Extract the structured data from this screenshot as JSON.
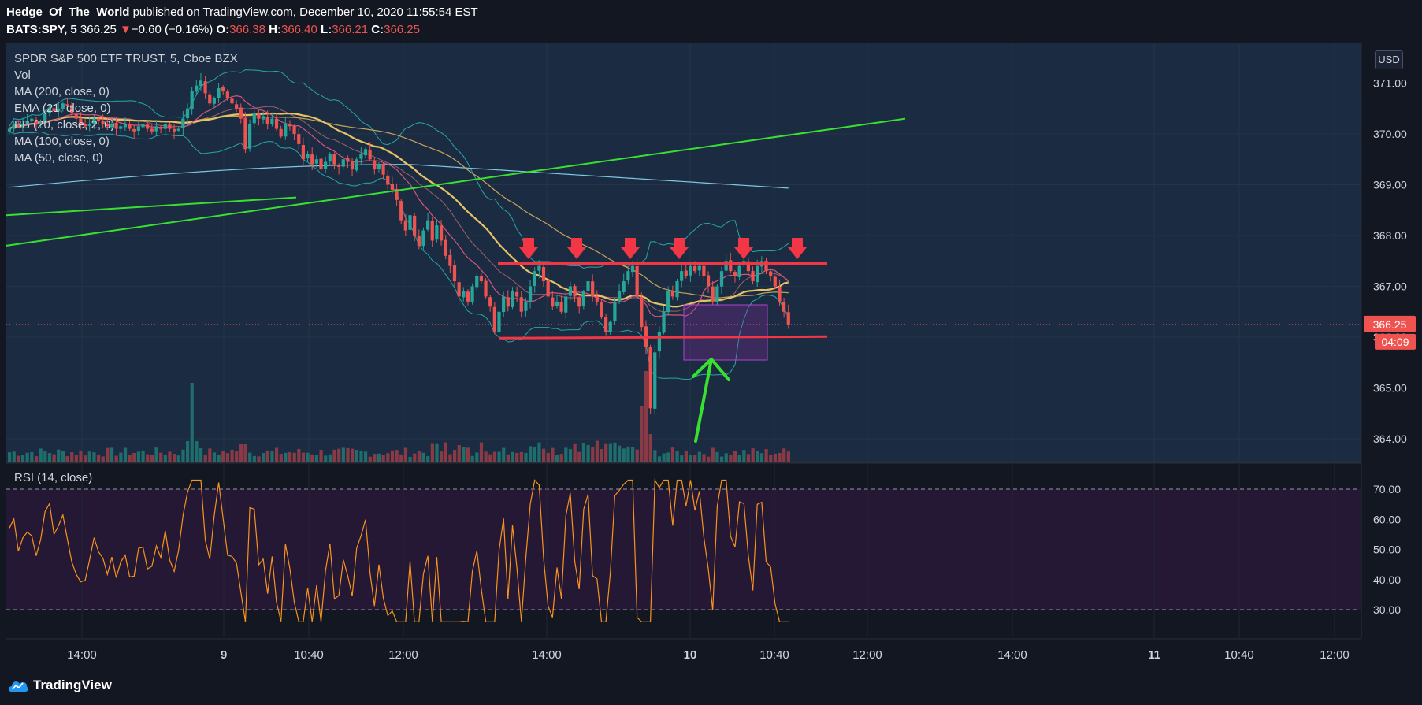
{
  "header": {
    "author": "Hedge_Of_The_World",
    "published": "published on TradingView.com, December 10, 2020 11:55:54 EST",
    "symbol": "BATS:SPY, 5",
    "last": "366.25",
    "arrow": "▼",
    "change": "−0.60 (−0.16%)",
    "o_label": "O:",
    "o_value": "366.38",
    "h_label": "H:",
    "h_value": "366.40",
    "l_label": "L:",
    "l_value": "366.21",
    "c_label": "C:",
    "c_value": "366.25"
  },
  "legend": {
    "title": "SPDR S&P 500 ETF TRUST, 5, Cboe BZX",
    "items": [
      "Vol",
      "MA (200, close, 0)",
      "EMA (21, close, 0)",
      "BB (20, close, 2, 0)",
      "MA (100, close, 0)",
      "MA (50, close, 0)"
    ]
  },
  "currency": "USD",
  "price_badge": "366.25",
  "time_badge": "04:09",
  "rsi_label": "RSI (14, close)",
  "footer": {
    "brand": "TradingView"
  },
  "colors": {
    "background": "#131722",
    "price_pane": "#1b2c42",
    "rsi_band": "#251834",
    "up": "#26a69a",
    "down": "#ef5350",
    "trendline": "#39e02f",
    "resistance": "#f23645",
    "ma50": "#e8c365",
    "ma200": "#7ec8e3",
    "ma100": "#c8a45a",
    "ema21": "#d5547c",
    "bb": "#26a6a6",
    "rsi": "#f7931e",
    "box": "#9c27b0"
  },
  "chart_data": [
    {
      "type": "candlestick",
      "title": "SPDR S&P 500 ETF TRUST, 5, Cboe BZX",
      "y_ticks": [
        "371.00",
        "370.00",
        "369.00",
        "368.00",
        "367.00",
        "366.00",
        "365.00",
        "364.00"
      ],
      "ylim": [
        363.8,
        371.8
      ],
      "x_ticks": [
        "14:00",
        "9",
        "10:40",
        "12:00",
        "14:00",
        "10",
        "10:40",
        "12:00",
        "14:00",
        "11",
        "10:40",
        "12:00"
      ],
      "last_price": 366.25,
      "annotations": {
        "resistance": 367.45,
        "support": 365.98,
        "down_arrows": 6,
        "green_trendlines": [
          {
            "from": 368.4,
            "to": 368.75
          },
          {
            "from": 367.8,
            "to": 370.3
          }
        ]
      },
      "close": [
        370.1,
        370.2,
        370.15,
        370.2,
        370.25,
        370.3,
        370.2,
        370.25,
        370.4,
        370.5,
        370.45,
        370.5,
        370.6,
        370.55,
        370.4,
        370.3,
        370.2,
        370.15,
        370.2,
        370.3,
        370.25,
        370.2,
        370.15,
        370.2,
        370.1,
        370.15,
        370.2,
        370.1,
        370.05,
        370.15,
        370.2,
        370.1,
        370.05,
        370.15,
        370.1,
        370.2,
        370.1,
        370.05,
        370.1,
        370.3,
        370.5,
        370.85,
        370.95,
        371.05,
        370.8,
        370.6,
        370.7,
        370.9,
        370.85,
        370.7,
        370.6,
        370.5,
        370.3,
        369.7,
        370.2,
        370.4,
        370.3,
        370.35,
        370.2,
        370.3,
        370.1,
        369.95,
        370.2,
        370.15,
        370.0,
        369.8,
        369.5,
        369.6,
        369.4,
        369.5,
        369.3,
        369.45,
        369.6,
        369.4,
        369.35,
        369.5,
        369.45,
        369.3,
        369.5,
        369.6,
        369.7,
        369.5,
        369.3,
        369.4,
        369.2,
        369.0,
        368.9,
        368.7,
        368.3,
        368.1,
        368.4,
        368.0,
        367.8,
        368.1,
        368.3,
        367.9,
        368.2,
        367.9,
        367.6,
        367.4,
        367.1,
        366.8,
        366.9,
        366.7,
        367.0,
        367.2,
        367.1,
        366.8,
        366.6,
        366.1,
        366.5,
        366.8,
        366.6,
        366.9,
        366.8,
        366.5,
        366.7,
        367.0,
        367.3,
        367.4,
        367.1,
        366.8,
        366.6,
        366.7,
        366.5,
        366.8,
        367.0,
        366.8,
        366.6,
        366.9,
        367.1,
        366.8,
        366.7,
        366.4,
        366.1,
        366.3,
        366.7,
        366.9,
        367.1,
        367.3,
        367.4,
        366.8,
        366.2,
        365.8,
        364.6,
        365.7,
        366.1,
        366.5,
        366.9,
        366.8,
        367.1,
        367.3,
        367.2,
        367.4,
        367.3,
        367.4,
        367.2,
        367.0,
        366.7,
        367.0,
        367.3,
        367.5,
        367.3,
        367.2,
        367.4,
        367.5,
        367.3,
        367.1,
        367.4,
        367.5,
        367.3,
        367.2,
        367.0,
        366.7,
        366.5,
        366.25
      ],
      "rsi": {
        "ylim": [
          25,
          75
        ],
        "levels": [
          70,
          30
        ]
      }
    }
  ]
}
